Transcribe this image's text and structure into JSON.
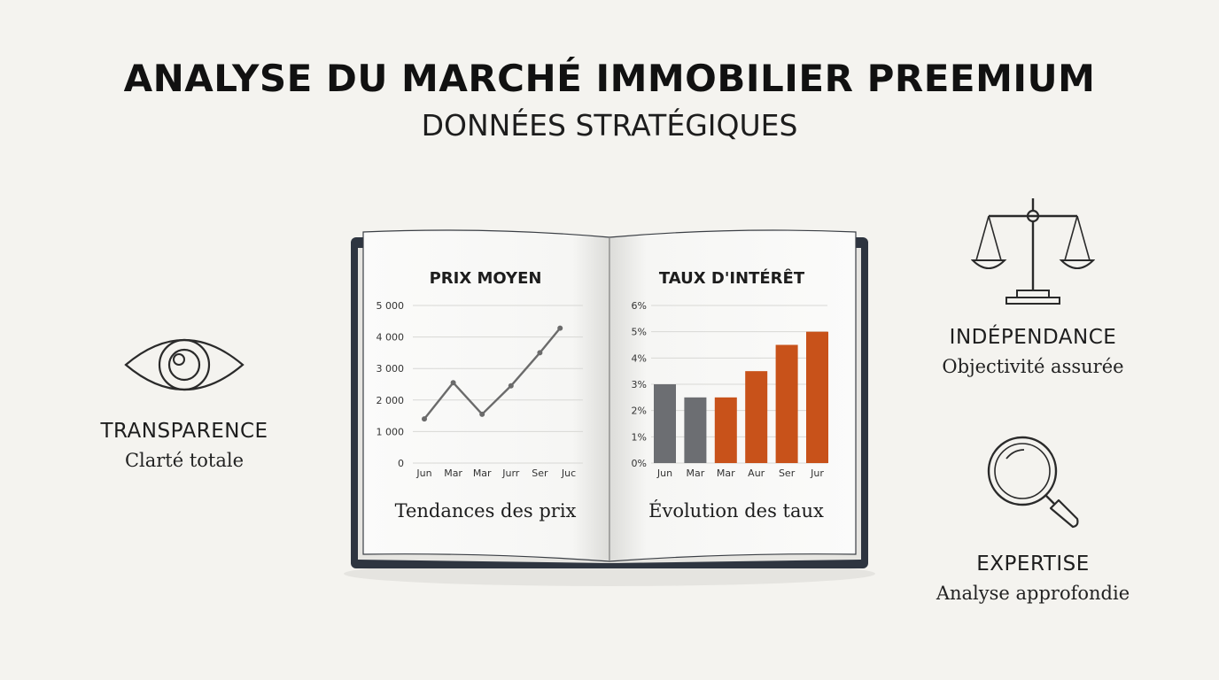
{
  "header": {
    "title": "ANALYSE DU MARCHÉ IMMOBILIER PREEMIUM",
    "subtitle": "DONNÉES STRATÉGIQUES"
  },
  "features": {
    "transparence": {
      "label": "TRANSPARENCE",
      "desc": "Clarté totale",
      "icon": "eye-icon"
    },
    "independance": {
      "label": "INDÉPENDANCE",
      "desc": "Objectivité assurée",
      "icon": "balance-scale-icon"
    },
    "expertise": {
      "label": "EXPERTISE",
      "desc": "Analyse approfondie",
      "icon": "magnifying-glass-icon"
    }
  },
  "colors": {
    "background": "#f4f3ef",
    "book_cover": "#2e3540",
    "line": "#6b6b6b",
    "bar_gray": "#6c6e72",
    "bar_orange": "#c8521a"
  },
  "chart_data": [
    {
      "type": "line",
      "title": "PRIX MOYEN",
      "caption": "Tendances des prix",
      "categories": [
        "Jun",
        "Mar",
        "Mar",
        "Jurr",
        "Ser",
        "Juc"
      ],
      "x": [
        0,
        1,
        2,
        3,
        4,
        4.7
      ],
      "x_ticks": [
        0,
        1,
        2,
        3,
        4,
        5
      ],
      "values": [
        1400,
        2550,
        1550,
        2450,
        3500,
        4280
      ],
      "ylim": [
        0,
        5000
      ],
      "yticks": [
        "0",
        "1 000",
        "2 000",
        "3 000",
        "4 000",
        "5 000"
      ],
      "ytick_values": [
        0,
        1000,
        2000,
        3000,
        4000,
        5000
      ],
      "grid": true
    },
    {
      "type": "bar",
      "title": "TAUX D'INTÉRÊT",
      "caption": "Évolution des taux",
      "categories": [
        "Jun",
        "Mar",
        "Mar",
        "Aur",
        "Ser",
        "Jur"
      ],
      "values": [
        3.0,
        2.5,
        2.5,
        3.5,
        4.5,
        5.0
      ],
      "bar_colors": [
        "gray",
        "gray",
        "orange",
        "orange",
        "orange",
        "orange"
      ],
      "ylim": [
        0,
        6
      ],
      "yticks": [
        "0%",
        "1%",
        "2%",
        "3%",
        "4%",
        "5%",
        "6%"
      ],
      "ytick_values": [
        0,
        1,
        2,
        3,
        4,
        5,
        6
      ],
      "grid": true
    }
  ]
}
